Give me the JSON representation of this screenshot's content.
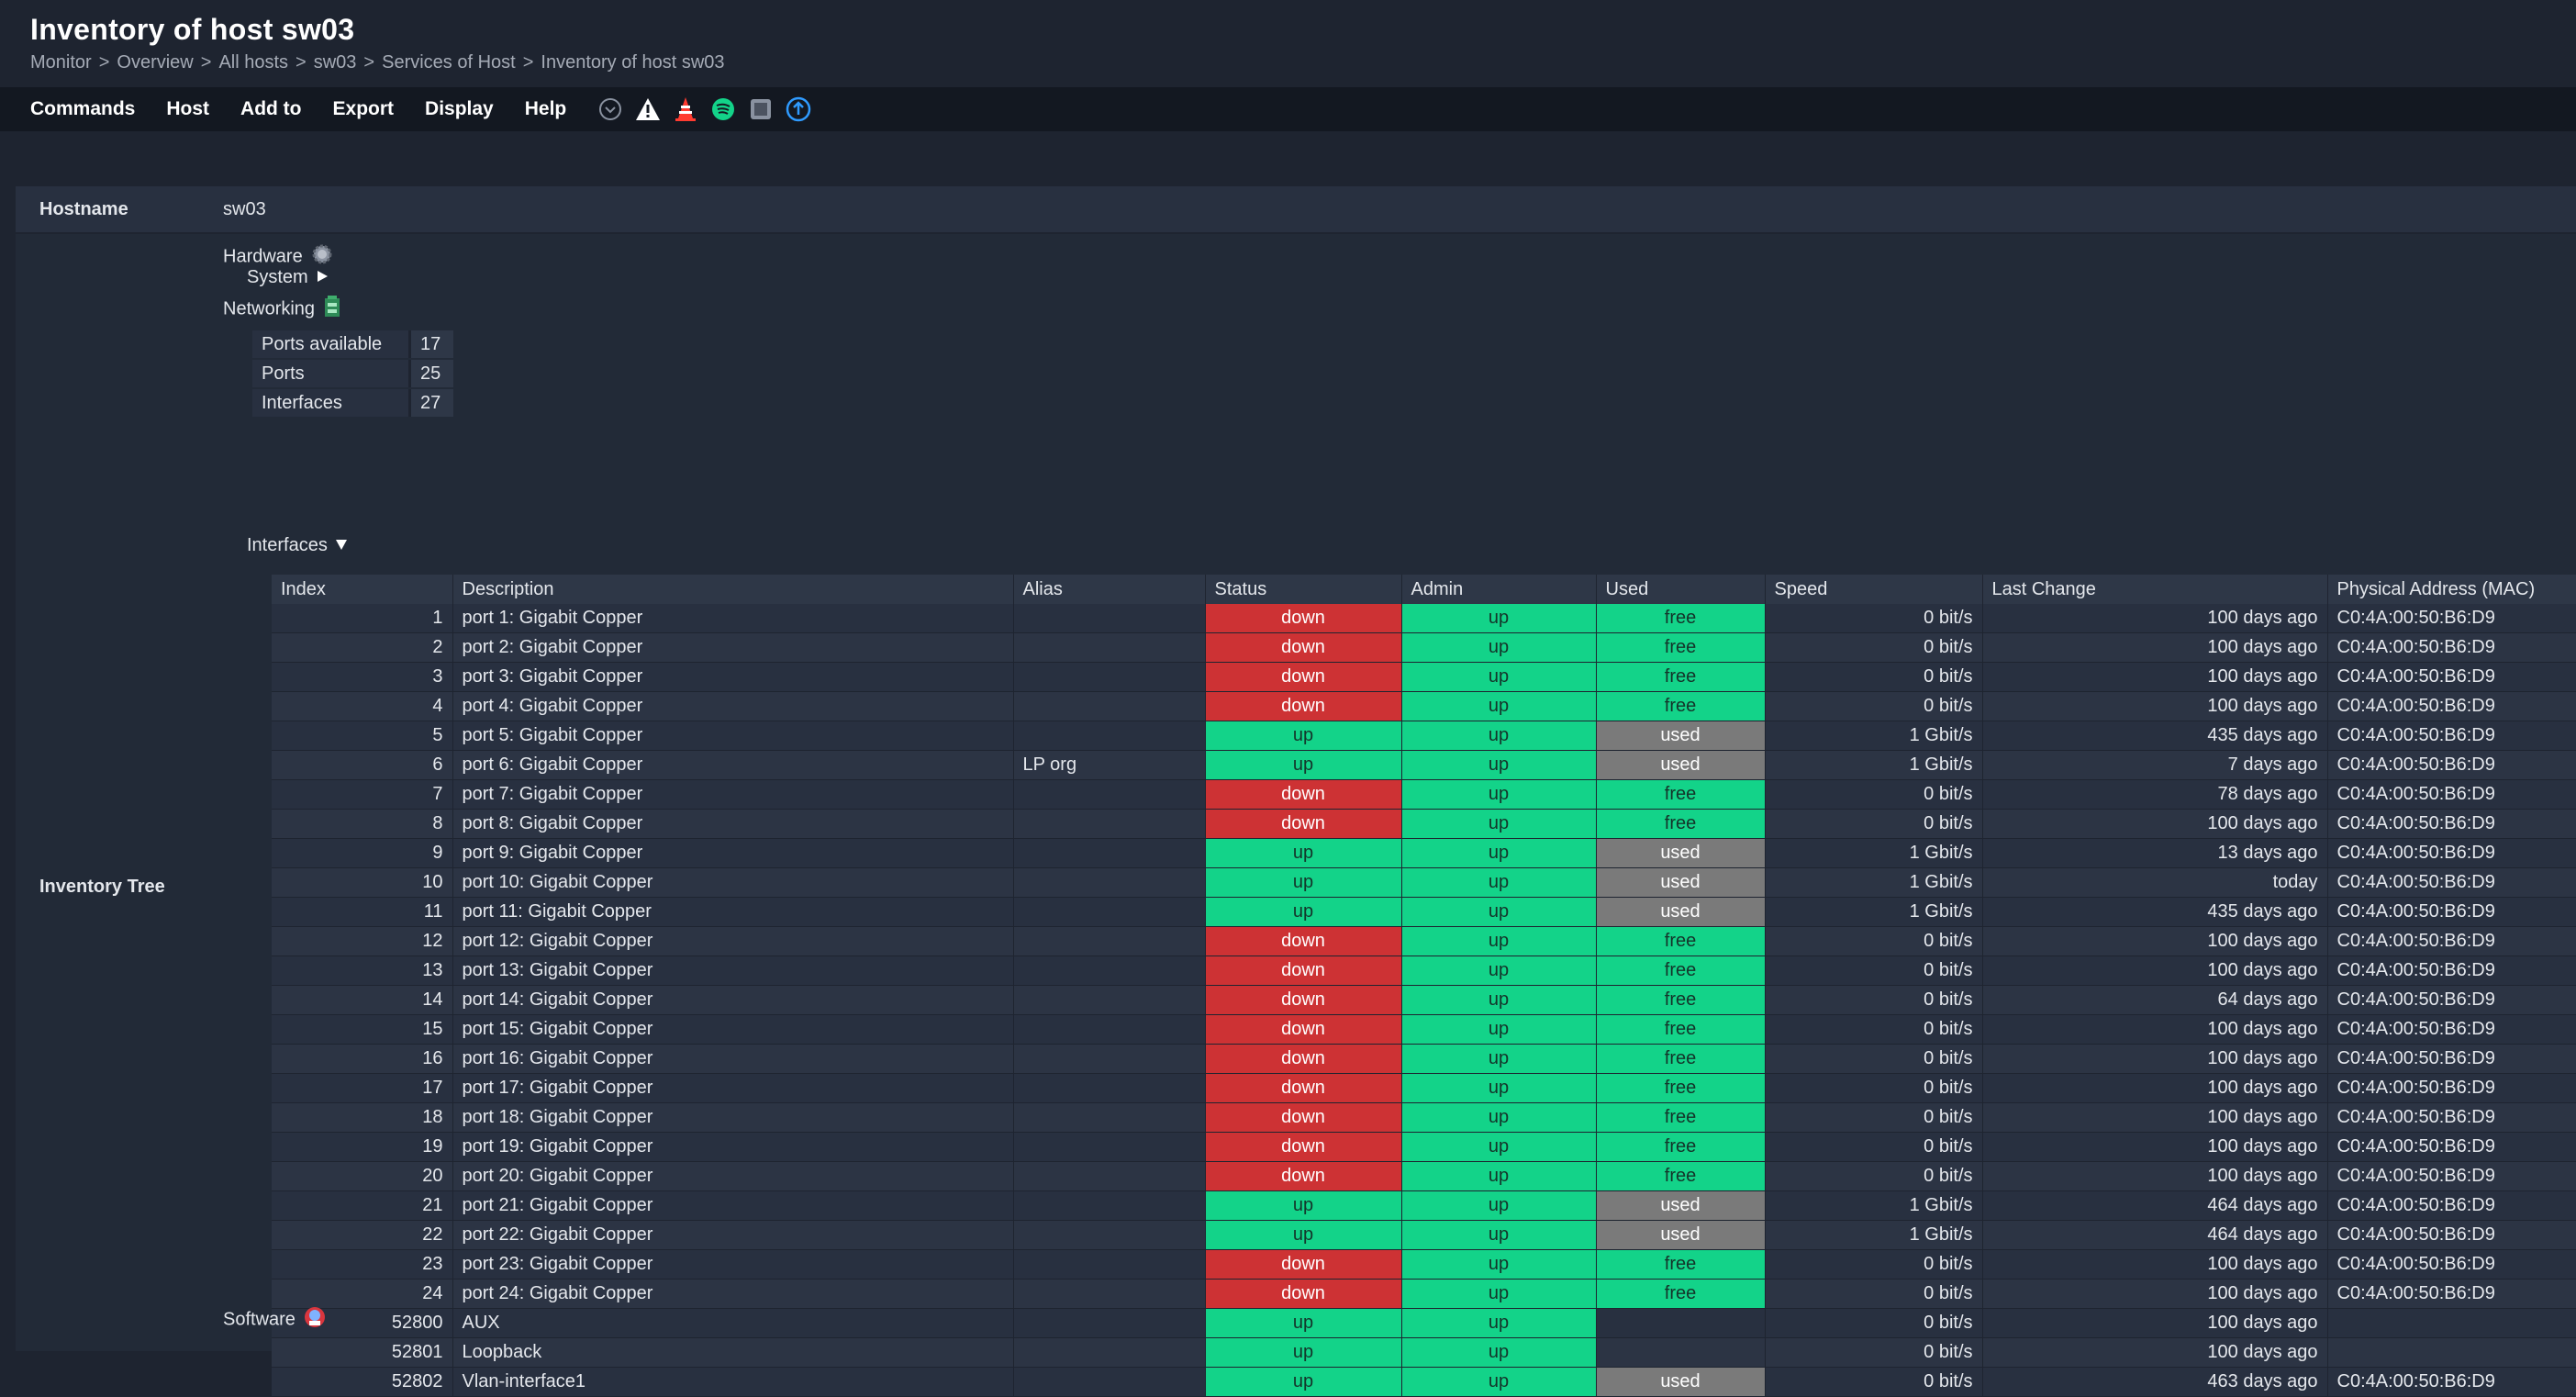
{
  "page": {
    "title": "Inventory of host sw03",
    "breadcrumb": [
      "Monitor",
      "Overview",
      "All hosts",
      "sw03",
      "Services of Host",
      "Inventory of host sw03"
    ]
  },
  "menu": [
    "Commands",
    "Host",
    "Add to",
    "Export",
    "Display",
    "Help"
  ],
  "toolbar_icons": [
    {
      "name": "chevron-down-circle-icon",
      "color": "#8a92a0"
    },
    {
      "name": "warning-icon",
      "color": "#ffffff"
    },
    {
      "name": "traffic-cone-icon",
      "color": "#ff3b30"
    },
    {
      "name": "spotify-like-icon",
      "color": "#13d389"
    },
    {
      "name": "stop-square-icon",
      "color": "#8a92a0"
    },
    {
      "name": "upload-circle-icon",
      "color": "#2f9bff"
    }
  ],
  "hostname": {
    "label": "Hostname",
    "value": "sw03"
  },
  "inventory": {
    "label": "Inventory Tree",
    "hardware": "Hardware",
    "system": "System",
    "networking": "Networking",
    "summary": [
      {
        "key": "Ports available",
        "value": "17"
      },
      {
        "key": "Ports",
        "value": "25"
      },
      {
        "key": "Interfaces",
        "value": "27"
      }
    ],
    "interfaces_label": "Interfaces",
    "software": "Software"
  },
  "columns": [
    "Index",
    "Description",
    "Alias",
    "Status",
    "Admin",
    "Used",
    "Speed",
    "Last Change",
    "Physical Address (MAC)"
  ],
  "interfaces": [
    {
      "index": "1",
      "description": "port 1: Gigabit Copper",
      "alias": "",
      "status": "down",
      "admin": "up",
      "used": "free",
      "speed": "0 bit/s",
      "last_change": "100 days ago",
      "mac": "C0:4A:00:50:B6:D9"
    },
    {
      "index": "2",
      "description": "port 2: Gigabit Copper",
      "alias": "",
      "status": "down",
      "admin": "up",
      "used": "free",
      "speed": "0 bit/s",
      "last_change": "100 days ago",
      "mac": "C0:4A:00:50:B6:D9"
    },
    {
      "index": "3",
      "description": "port 3: Gigabit Copper",
      "alias": "",
      "status": "down",
      "admin": "up",
      "used": "free",
      "speed": "0 bit/s",
      "last_change": "100 days ago",
      "mac": "C0:4A:00:50:B6:D9"
    },
    {
      "index": "4",
      "description": "port 4: Gigabit Copper",
      "alias": "",
      "status": "down",
      "admin": "up",
      "used": "free",
      "speed": "0 bit/s",
      "last_change": "100 days ago",
      "mac": "C0:4A:00:50:B6:D9"
    },
    {
      "index": "5",
      "description": "port 5: Gigabit Copper",
      "alias": "",
      "status": "up",
      "admin": "up",
      "used": "used",
      "speed": "1 Gbit/s",
      "last_change": "435 days ago",
      "mac": "C0:4A:00:50:B6:D9"
    },
    {
      "index": "6",
      "description": "port 6: Gigabit Copper",
      "alias": "LP org",
      "status": "up",
      "admin": "up",
      "used": "used",
      "speed": "1 Gbit/s",
      "last_change": "7 days ago",
      "mac": "C0:4A:00:50:B6:D9"
    },
    {
      "index": "7",
      "description": "port 7: Gigabit Copper",
      "alias": "",
      "status": "down",
      "admin": "up",
      "used": "free",
      "speed": "0 bit/s",
      "last_change": "78 days ago",
      "mac": "C0:4A:00:50:B6:D9"
    },
    {
      "index": "8",
      "description": "port 8: Gigabit Copper",
      "alias": "",
      "status": "down",
      "admin": "up",
      "used": "free",
      "speed": "0 bit/s",
      "last_change": "100 days ago",
      "mac": "C0:4A:00:50:B6:D9"
    },
    {
      "index": "9",
      "description": "port 9: Gigabit Copper",
      "alias": "",
      "status": "up",
      "admin": "up",
      "used": "used",
      "speed": "1 Gbit/s",
      "last_change": "13 days ago",
      "mac": "C0:4A:00:50:B6:D9"
    },
    {
      "index": "10",
      "description": "port 10: Gigabit Copper",
      "alias": "",
      "status": "up",
      "admin": "up",
      "used": "used",
      "speed": "1 Gbit/s",
      "last_change": "today",
      "mac": "C0:4A:00:50:B6:D9"
    },
    {
      "index": "11",
      "description": "port 11: Gigabit Copper",
      "alias": "",
      "status": "up",
      "admin": "up",
      "used": "used",
      "speed": "1 Gbit/s",
      "last_change": "435 days ago",
      "mac": "C0:4A:00:50:B6:D9"
    },
    {
      "index": "12",
      "description": "port 12: Gigabit Copper",
      "alias": "",
      "status": "down",
      "admin": "up",
      "used": "free",
      "speed": "0 bit/s",
      "last_change": "100 days ago",
      "mac": "C0:4A:00:50:B6:D9"
    },
    {
      "index": "13",
      "description": "port 13: Gigabit Copper",
      "alias": "",
      "status": "down",
      "admin": "up",
      "used": "free",
      "speed": "0 bit/s",
      "last_change": "100 days ago",
      "mac": "C0:4A:00:50:B6:D9"
    },
    {
      "index": "14",
      "description": "port 14: Gigabit Copper",
      "alias": "",
      "status": "down",
      "admin": "up",
      "used": "free",
      "speed": "0 bit/s",
      "last_change": "64 days ago",
      "mac": "C0:4A:00:50:B6:D9"
    },
    {
      "index": "15",
      "description": "port 15: Gigabit Copper",
      "alias": "",
      "status": "down",
      "admin": "up",
      "used": "free",
      "speed": "0 bit/s",
      "last_change": "100 days ago",
      "mac": "C0:4A:00:50:B6:D9"
    },
    {
      "index": "16",
      "description": "port 16: Gigabit Copper",
      "alias": "",
      "status": "down",
      "admin": "up",
      "used": "free",
      "speed": "0 bit/s",
      "last_change": "100 days ago",
      "mac": "C0:4A:00:50:B6:D9"
    },
    {
      "index": "17",
      "description": "port 17: Gigabit Copper",
      "alias": "",
      "status": "down",
      "admin": "up",
      "used": "free",
      "speed": "0 bit/s",
      "last_change": "100 days ago",
      "mac": "C0:4A:00:50:B6:D9"
    },
    {
      "index": "18",
      "description": "port 18: Gigabit Copper",
      "alias": "",
      "status": "down",
      "admin": "up",
      "used": "free",
      "speed": "0 bit/s",
      "last_change": "100 days ago",
      "mac": "C0:4A:00:50:B6:D9"
    },
    {
      "index": "19",
      "description": "port 19: Gigabit Copper",
      "alias": "",
      "status": "down",
      "admin": "up",
      "used": "free",
      "speed": "0 bit/s",
      "last_change": "100 days ago",
      "mac": "C0:4A:00:50:B6:D9"
    },
    {
      "index": "20",
      "description": "port 20: Gigabit Copper",
      "alias": "",
      "status": "down",
      "admin": "up",
      "used": "free",
      "speed": "0 bit/s",
      "last_change": "100 days ago",
      "mac": "C0:4A:00:50:B6:D9"
    },
    {
      "index": "21",
      "description": "port 21: Gigabit Copper",
      "alias": "",
      "status": "up",
      "admin": "up",
      "used": "used",
      "speed": "1 Gbit/s",
      "last_change": "464 days ago",
      "mac": "C0:4A:00:50:B6:D9"
    },
    {
      "index": "22",
      "description": "port 22: Gigabit Copper",
      "alias": "",
      "status": "up",
      "admin": "up",
      "used": "used",
      "speed": "1 Gbit/s",
      "last_change": "464 days ago",
      "mac": "C0:4A:00:50:B6:D9"
    },
    {
      "index": "23",
      "description": "port 23: Gigabit Copper",
      "alias": "",
      "status": "down",
      "admin": "up",
      "used": "free",
      "speed": "0 bit/s",
      "last_change": "100 days ago",
      "mac": "C0:4A:00:50:B6:D9"
    },
    {
      "index": "24",
      "description": "port 24: Gigabit Copper",
      "alias": "",
      "status": "down",
      "admin": "up",
      "used": "free",
      "speed": "0 bit/s",
      "last_change": "100 days ago",
      "mac": "C0:4A:00:50:B6:D9"
    },
    {
      "index": "52800",
      "description": "AUX",
      "alias": "",
      "status": "up",
      "admin": "up",
      "used": "",
      "speed": "0 bit/s",
      "last_change": "100 days ago",
      "mac": ""
    },
    {
      "index": "52801",
      "description": "Loopback",
      "alias": "",
      "status": "up",
      "admin": "up",
      "used": "",
      "speed": "0 bit/s",
      "last_change": "100 days ago",
      "mac": ""
    },
    {
      "index": "52802",
      "description": "Vlan-interface1",
      "alias": "",
      "status": "up",
      "admin": "up",
      "used": "used",
      "speed": "0 bit/s",
      "last_change": "463 days ago",
      "mac": "C0:4A:00:50:B6:D9"
    }
  ],
  "colors": {
    "status_up": "#13d389",
    "status_down": "#cd3234",
    "used": "#7a7a7a",
    "free": "#13d389",
    "background": "#1e2430"
  }
}
